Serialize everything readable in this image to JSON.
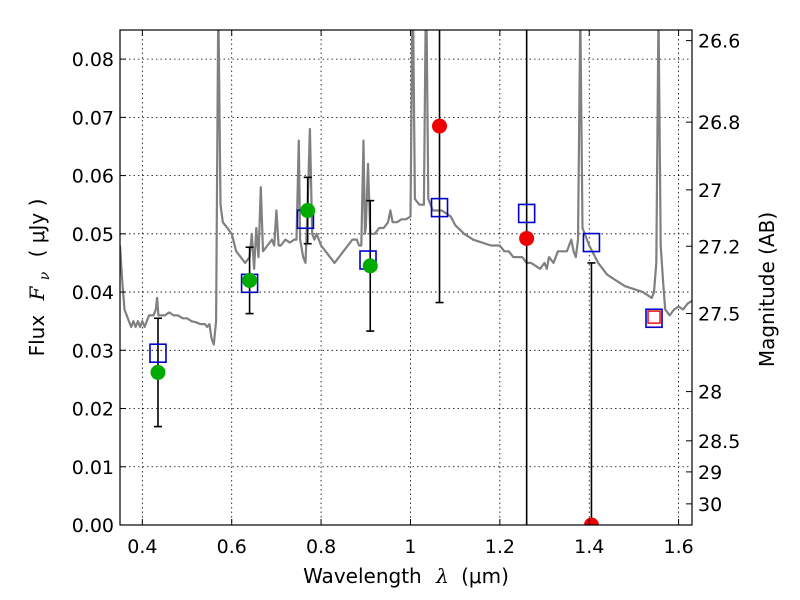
{
  "chart_data": {
    "type": "scatter",
    "xlabel_prefix": "Wavelength",
    "xlabel_symbol": "λ",
    "xlabel_unit": "(μm)",
    "ylabel_prefix": "Flux",
    "ylabel_symbol_main": "F",
    "ylabel_symbol_sub": "ν",
    "ylabel_unit": "( μJy )",
    "y2label": "Magnitude (AB)",
    "xlim": [
      0.35,
      1.63
    ],
    "ylim": [
      0,
      0.085
    ],
    "grid": true,
    "x_ticks": [
      {
        "value": 0.4,
        "label": "0.4"
      },
      {
        "value": 0.6,
        "label": "0.6"
      },
      {
        "value": 0.8,
        "label": "0.8"
      },
      {
        "value": 1.0,
        "label": "1"
      },
      {
        "value": 1.2,
        "label": "1.2"
      },
      {
        "value": 1.4,
        "label": "1.4"
      },
      {
        "value": 1.6,
        "label": "1.6"
      }
    ],
    "y_ticks": [
      {
        "value": 0.0,
        "label": "0.00"
      },
      {
        "value": 0.01,
        "label": "0.01"
      },
      {
        "value": 0.02,
        "label": "0.02"
      },
      {
        "value": 0.03,
        "label": "0.03"
      },
      {
        "value": 0.04,
        "label": "0.04"
      },
      {
        "value": 0.05,
        "label": "0.05"
      },
      {
        "value": 0.06,
        "label": "0.06"
      },
      {
        "value": 0.07,
        "label": "0.07"
      },
      {
        "value": 0.08,
        "label": "0.08"
      }
    ],
    "y2_ticks": [
      {
        "label": "26.6",
        "mag": 26.6
      },
      {
        "label": "26.8",
        "mag": 26.8
      },
      {
        "label": "27",
        "mag": 27.0
      },
      {
        "label": "27.2",
        "mag": 27.2
      },
      {
        "label": "27.5",
        "mag": 27.5
      },
      {
        "label": "28",
        "mag": 28.0
      },
      {
        "label": "28.5",
        "mag": 28.5
      },
      {
        "label": "29",
        "mag": 29.0
      },
      {
        "label": "30",
        "mag": 30.0
      }
    ],
    "model_spectrum": {
      "color": "#808080",
      "points": [
        [
          0.35,
          0.048
        ],
        [
          0.355,
          0.042
        ],
        [
          0.36,
          0.037
        ],
        [
          0.365,
          0.036
        ],
        [
          0.37,
          0.035
        ],
        [
          0.375,
          0.034
        ],
        [
          0.38,
          0.035
        ],
        [
          0.385,
          0.034
        ],
        [
          0.39,
          0.035
        ],
        [
          0.395,
          0.034
        ],
        [
          0.4,
          0.035
        ],
        [
          0.405,
          0.034
        ],
        [
          0.41,
          0.035
        ],
        [
          0.415,
          0.036
        ],
        [
          0.42,
          0.036
        ],
        [
          0.425,
          0.036
        ],
        [
          0.43,
          0.037
        ],
        [
          0.433,
          0.039
        ],
        [
          0.436,
          0.036
        ],
        [
          0.44,
          0.036
        ],
        [
          0.45,
          0.036
        ],
        [
          0.46,
          0.0365
        ],
        [
          0.47,
          0.036
        ],
        [
          0.48,
          0.036
        ],
        [
          0.49,
          0.0355
        ],
        [
          0.5,
          0.0355
        ],
        [
          0.51,
          0.035
        ],
        [
          0.52,
          0.0348
        ],
        [
          0.53,
          0.0345
        ],
        [
          0.54,
          0.0345
        ],
        [
          0.545,
          0.034
        ],
        [
          0.55,
          0.0345
        ],
        [
          0.555,
          0.032
        ],
        [
          0.56,
          0.031
        ],
        [
          0.565,
          0.035
        ],
        [
          0.57,
          0.09
        ],
        [
          0.575,
          0.055
        ],
        [
          0.58,
          0.052
        ],
        [
          0.59,
          0.051
        ],
        [
          0.6,
          0.05
        ],
        [
          0.61,
          0.047
        ],
        [
          0.62,
          0.046
        ],
        [
          0.63,
          0.045
        ],
        [
          0.64,
          0.046
        ],
        [
          0.645,
          0.05
        ],
        [
          0.65,
          0.044
        ],
        [
          0.655,
          0.051
        ],
        [
          0.66,
          0.046
        ],
        [
          0.665,
          0.058
        ],
        [
          0.67,
          0.047
        ],
        [
          0.68,
          0.048
        ],
        [
          0.69,
          0.049
        ],
        [
          0.695,
          0.048
        ],
        [
          0.7,
          0.054
        ],
        [
          0.705,
          0.048
        ],
        [
          0.71,
          0.048
        ],
        [
          0.72,
          0.049
        ],
        [
          0.73,
          0.0485
        ],
        [
          0.74,
          0.049
        ],
        [
          0.745,
          0.049
        ],
        [
          0.75,
          0.066
        ],
        [
          0.753,
          0.049
        ],
        [
          0.76,
          0.046
        ],
        [
          0.765,
          0.045
        ],
        [
          0.77,
          0.055
        ],
        [
          0.775,
          0.068
        ],
        [
          0.78,
          0.05
        ],
        [
          0.785,
          0.049
        ],
        [
          0.79,
          0.05
        ],
        [
          0.8,
          0.048
        ],
        [
          0.81,
          0.047
        ],
        [
          0.82,
          0.046
        ],
        [
          0.83,
          0.045
        ],
        [
          0.84,
          0.046
        ],
        [
          0.85,
          0.047
        ],
        [
          0.86,
          0.048
        ],
        [
          0.87,
          0.049
        ],
        [
          0.88,
          0.049
        ],
        [
          0.885,
          0.048
        ],
        [
          0.89,
          0.048
        ],
        [
          0.895,
          0.066
        ],
        [
          0.898,
          0.05
        ],
        [
          0.9,
          0.051
        ],
        [
          0.905,
          0.062
        ],
        [
          0.91,
          0.05
        ],
        [
          0.92,
          0.05
        ],
        [
          0.93,
          0.051
        ],
        [
          0.94,
          0.051
        ],
        [
          0.95,
          0.052
        ],
        [
          0.955,
          0.054
        ],
        [
          0.96,
          0.052
        ],
        [
          0.97,
          0.052
        ],
        [
          0.98,
          0.0525
        ],
        [
          0.99,
          0.0525
        ],
        [
          1.0,
          0.053
        ],
        [
          1.005,
          0.095
        ],
        [
          1.01,
          0.056
        ],
        [
          1.02,
          0.055
        ],
        [
          1.03,
          0.055
        ],
        [
          1.035,
          0.095
        ],
        [
          1.04,
          0.056
        ],
        [
          1.05,
          0.054
        ],
        [
          1.07,
          0.054
        ],
        [
          1.09,
          0.053
        ],
        [
          1.1,
          0.0515
        ],
        [
          1.12,
          0.05
        ],
        [
          1.14,
          0.049
        ],
        [
          1.16,
          0.0485
        ],
        [
          1.18,
          0.048
        ],
        [
          1.2,
          0.048
        ],
        [
          1.21,
          0.047
        ],
        [
          1.22,
          0.047
        ],
        [
          1.23,
          0.046
        ],
        [
          1.25,
          0.046
        ],
        [
          1.26,
          0.045
        ],
        [
          1.27,
          0.045
        ],
        [
          1.29,
          0.044
        ],
        [
          1.3,
          0.045
        ],
        [
          1.305,
          0.044
        ],
        [
          1.31,
          0.046
        ],
        [
          1.32,
          0.045
        ],
        [
          1.33,
          0.047
        ],
        [
          1.34,
          0.047
        ],
        [
          1.35,
          0.047
        ],
        [
          1.36,
          0.049
        ],
        [
          1.365,
          0.047
        ],
        [
          1.37,
          0.046
        ],
        [
          1.375,
          0.049
        ],
        [
          1.38,
          0.088
        ],
        [
          1.385,
          0.051
        ],
        [
          1.4,
          0.048
        ],
        [
          1.42,
          0.045
        ],
        [
          1.44,
          0.043
        ],
        [
          1.46,
          0.042
        ],
        [
          1.48,
          0.041
        ],
        [
          1.5,
          0.0405
        ],
        [
          1.52,
          0.04
        ],
        [
          1.54,
          0.039
        ],
        [
          1.545,
          0.04
        ],
        [
          1.55,
          0.045
        ],
        [
          1.555,
          0.088
        ],
        [
          1.56,
          0.048
        ],
        [
          1.565,
          0.042
        ],
        [
          1.57,
          0.037
        ],
        [
          1.58,
          0.036
        ],
        [
          1.59,
          0.037
        ],
        [
          1.6,
          0.0375
        ],
        [
          1.61,
          0.037
        ],
        [
          1.62,
          0.038
        ],
        [
          1.63,
          0.0385
        ]
      ]
    },
    "model_photometry": {
      "marker": "open-square",
      "color": "#0000cc",
      "points": [
        [
          0.435,
          0.0295
        ],
        [
          0.64,
          0.0415
        ],
        [
          0.765,
          0.0525
        ],
        [
          0.905,
          0.0455
        ],
        [
          1.065,
          0.0545
        ],
        [
          1.26,
          0.0535
        ],
        [
          1.405,
          0.0485
        ],
        [
          1.545,
          0.0355
        ]
      ]
    },
    "detections": {
      "color": "#00aa00",
      "points": [
        {
          "x": 0.435,
          "y": 0.0262,
          "err": 0.0093
        },
        {
          "x": 0.64,
          "y": 0.042,
          "err": 0.0057
        },
        {
          "x": 0.77,
          "y": 0.054,
          "err": 0.0057
        },
        {
          "x": 0.91,
          "y": 0.0445,
          "err": 0.0112
        }
      ]
    },
    "low_significance": {
      "color": "#ee0000",
      "points": [
        {
          "x": 1.065,
          "y": 0.0685,
          "err": 0.0303
        },
        {
          "x": 1.26,
          "y": 0.0492,
          "err": 0.06
        },
        {
          "x": 1.405,
          "y": 0.0,
          "err": 0.045
        }
      ]
    },
    "extra_marker": {
      "x": 1.545,
      "y": 0.0357,
      "color": "#ee0000"
    }
  }
}
